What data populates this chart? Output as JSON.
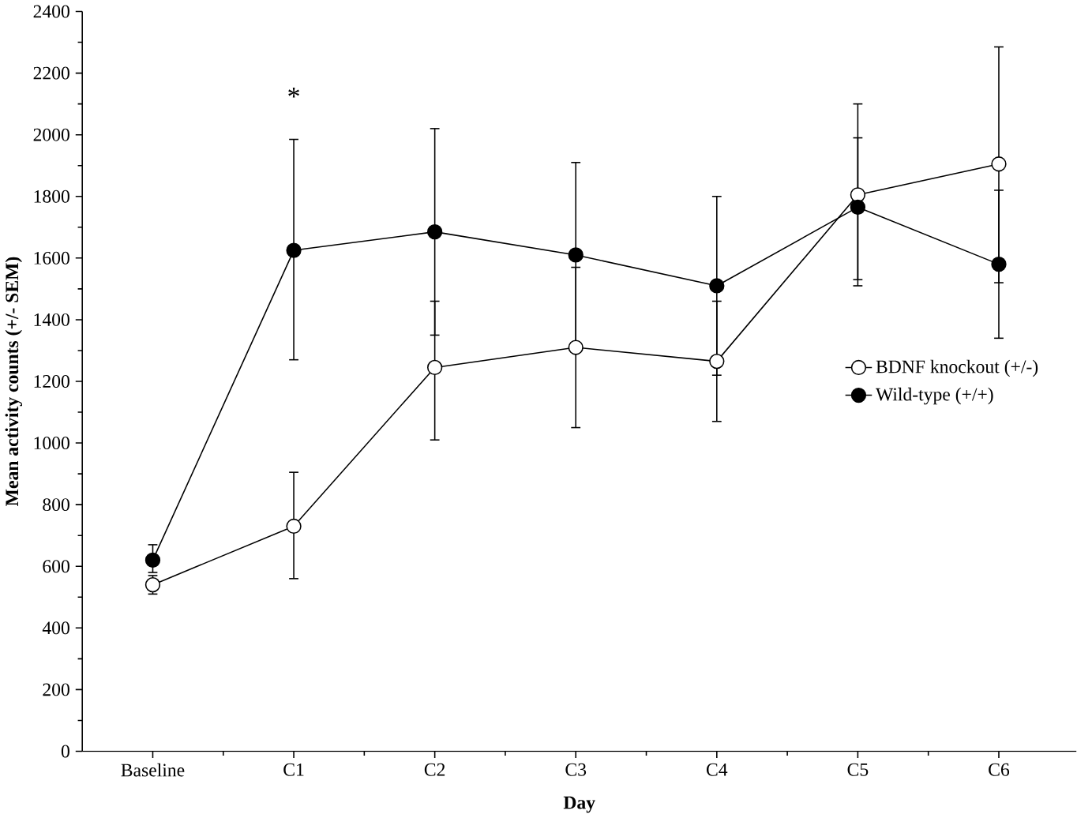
{
  "chart_data": {
    "type": "line",
    "xlabel": "Day",
    "ylabel": "Mean activity counts (+/- SEM)",
    "categories": [
      "Baseline",
      "C1",
      "C2",
      "C3",
      "C4",
      "C5",
      "C6"
    ],
    "series": [
      {
        "name": "BDNF knockout (+/-)",
        "color": "#000000",
        "marker": "circle",
        "values": [
          540,
          730,
          1245,
          1310,
          1265,
          1805,
          1905
        ],
        "errors": [
          [
            510,
            570
          ],
          [
            560,
            905
          ],
          [
            1010,
            1460
          ],
          [
            1050,
            1570
          ],
          [
            1070,
            1460
          ],
          [
            1530,
            2100
          ],
          [
            1520,
            2285
          ]
        ]
      },
      {
        "name": "Wild-type (+/+)",
        "color": "#000000",
        "marker": "circle",
        "values": [
          620,
          1625,
          1685,
          1610,
          1510,
          1765,
          1580
        ],
        "errors": [
          [
            580,
            670
          ],
          [
            1270,
            1985
          ],
          [
            1350,
            2020
          ],
          [
            1310,
            1910
          ],
          [
            1220,
            1800
          ],
          [
            1510,
            1990
          ],
          [
            1340,
            1820
          ]
        ]
      }
    ],
    "ylim": [
      0,
      2400
    ],
    "yticks": [
      0,
      200,
      400,
      600,
      800,
      1000,
      1200,
      1400,
      1600,
      1800,
      2000,
      2200,
      2400
    ],
    "annotations": [
      "*"
    ],
    "legend": "right",
    "grid": false,
    "line_style": "solid"
  }
}
